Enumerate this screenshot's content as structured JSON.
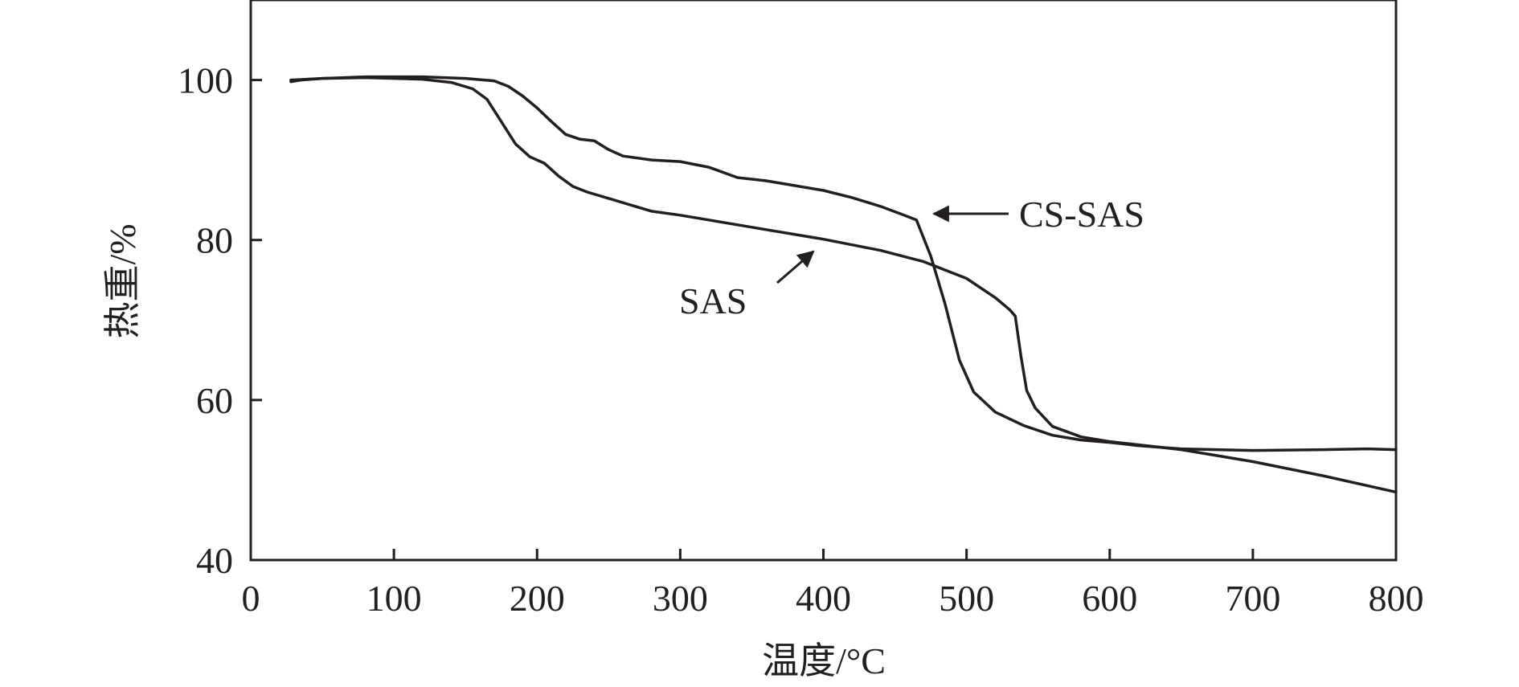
{
  "chart_data": {
    "type": "line",
    "title": "",
    "xlabel": "温度/°C",
    "ylabel": "热重/%",
    "xlim": [
      0,
      800
    ],
    "ylim": [
      40,
      110
    ],
    "xticks": [
      0,
      100,
      200,
      300,
      400,
      500,
      600,
      700,
      800
    ],
    "yticks": [
      40,
      60,
      80,
      100
    ],
    "grid": false,
    "legend": "none",
    "colors": {
      "line": "#231f20",
      "axis": "#231f20",
      "background": "#ffffff"
    },
    "series": [
      {
        "name": "CS-SAS",
        "x": [
          28,
          35,
          50,
          80,
          120,
          150,
          170,
          180,
          190,
          200,
          210,
          220,
          230,
          240,
          250,
          260,
          280,
          300,
          320,
          340,
          360,
          380,
          400,
          420,
          440,
          455,
          465,
          475,
          485,
          495,
          505,
          520,
          540,
          560,
          580,
          600,
          620,
          650,
          700,
          750,
          780,
          800
        ],
        "y": [
          99.8,
          100.0,
          100.2,
          100.4,
          100.4,
          100.2,
          99.9,
          99.2,
          98.0,
          96.5,
          94.8,
          93.2,
          92.6,
          92.4,
          91.3,
          90.5,
          90.0,
          89.8,
          89.1,
          87.8,
          87.4,
          86.8,
          86.2,
          85.3,
          84.2,
          83.2,
          82.5,
          78.0,
          72.0,
          65.0,
          61.0,
          58.5,
          56.8,
          55.6,
          55.0,
          54.7,
          54.3,
          53.9,
          53.7,
          53.8,
          53.9,
          53.8
        ]
      },
      {
        "name": "SAS",
        "x": [
          28,
          50,
          80,
          120,
          140,
          155,
          165,
          175,
          185,
          195,
          205,
          215,
          225,
          235,
          250,
          265,
          280,
          300,
          330,
          360,
          400,
          440,
          470,
          500,
          520,
          530,
          534,
          538,
          542,
          548,
          560,
          580,
          600,
          650,
          700,
          750,
          800
        ],
        "y": [
          100.0,
          100.2,
          100.3,
          100.1,
          99.7,
          98.9,
          97.6,
          94.8,
          92.0,
          90.4,
          89.6,
          88.0,
          86.7,
          86.0,
          85.2,
          84.4,
          83.6,
          83.1,
          82.2,
          81.3,
          80.1,
          78.7,
          77.3,
          75.2,
          72.8,
          71.3,
          70.5,
          65.5,
          61.2,
          59.0,
          56.7,
          55.4,
          54.8,
          53.8,
          52.3,
          50.5,
          48.5
        ]
      }
    ],
    "annotations": [
      {
        "text": "CS-SAS",
        "points_to": [
          465,
          83
        ]
      },
      {
        "text": "SAS",
        "points_to": [
          395,
          79
        ]
      }
    ]
  }
}
